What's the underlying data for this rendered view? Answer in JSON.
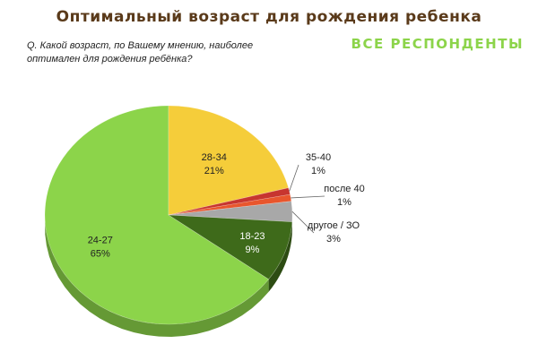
{
  "title": "Оптимальный возраст для рождения ребенка",
  "subtitle": "ВСЕ РЕСПОНДЕНТЫ",
  "question": "Q. Какой возраст, по Вашему мнению, наиболее оптимален для рождения ребёнка?",
  "chart_data": {
    "type": "pie",
    "title": "Оптимальный возраст для рождения ребенка",
    "subtitle": "ВСЕ РЕСПОНДЕНТЫ",
    "categories": [
      "24-27",
      "28-34",
      "35-40",
      "после 40",
      "другое / ЗО",
      "18-23"
    ],
    "values": [
      65,
      21,
      1,
      1,
      3,
      9
    ],
    "value_labels": [
      "65%",
      "21%",
      "1%",
      "1%",
      "3%",
      "9%"
    ],
    "colors": [
      "#8cd44a",
      "#f5cd3a",
      "#c7352f",
      "#e8562d",
      "#a8a8a8",
      "#3e6a1a"
    ],
    "label_colors": [
      "#222222",
      "#222222",
      "#222222",
      "#222222",
      "#222222",
      "#ffffff"
    ],
    "legend": "none"
  }
}
